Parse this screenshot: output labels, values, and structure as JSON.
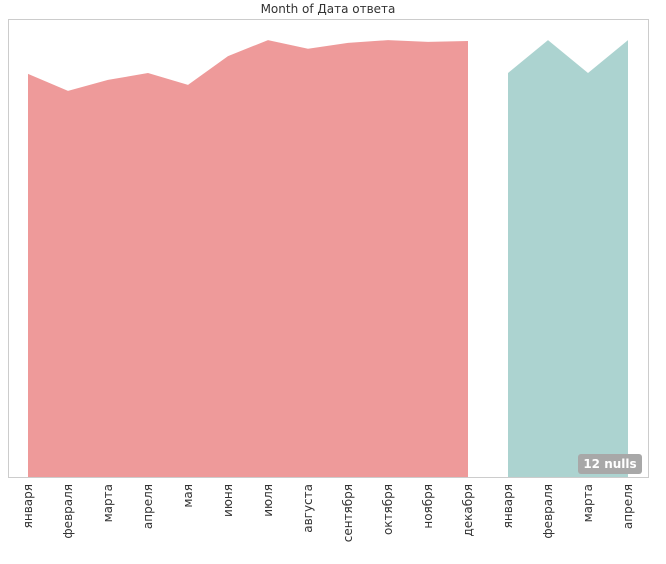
{
  "chart_data": {
    "type": "area",
    "title": "Month of Дата ответа",
    "categories": [
      "января",
      "февраля",
      "марта",
      "апреля",
      "мая",
      "июня",
      "июля",
      "августа",
      "сентября",
      "октября",
      "ноября",
      "декабря",
      "января",
      "февраля",
      "марта",
      "апреля"
    ],
    "series": [
      {
        "color": "#ee9a9a",
        "values": [
          88.2,
          84.5,
          86.9,
          88.4,
          85.8,
          92.1,
          95.6,
          93.7,
          95.0,
          95.6,
          95.2,
          95.4,
          null,
          null,
          null,
          null
        ]
      },
      {
        "color": "#acd3d0",
        "values": [
          null,
          null,
          null,
          null,
          null,
          null,
          null,
          null,
          null,
          null,
          null,
          null,
          88.4,
          95.6,
          88.4,
          95.6
        ]
      }
    ],
    "ylim": [
      0,
      100
    ],
    "annotation": "12 nulls"
  }
}
